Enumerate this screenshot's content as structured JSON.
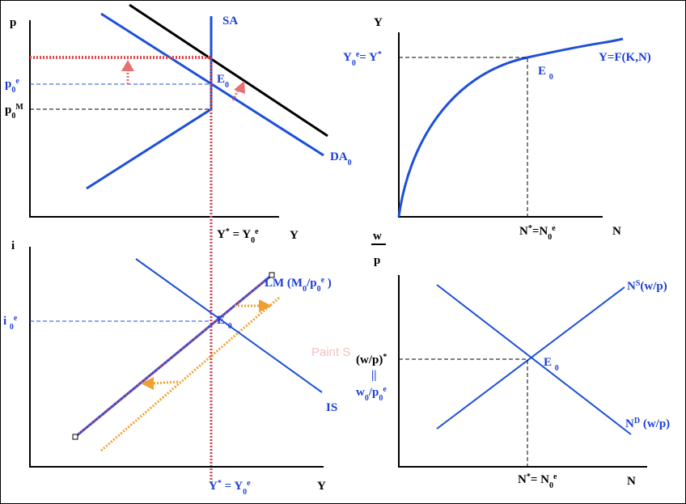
{
  "price_panel": {
    "y_axis": "p",
    "x_axis": "Y",
    "sa": "SA",
    "da": [
      {
        "t": "DA"
      },
      {
        "sub": "0"
      }
    ],
    "p0e": [
      {
        "t": "p"
      },
      {
        "sub": "0"
      },
      {
        "sup": "e"
      }
    ],
    "p0m": [
      {
        "t": "p"
      },
      {
        "sub": "0"
      },
      {
        "sup": "M"
      }
    ],
    "e0": [
      {
        "t": "E"
      },
      {
        "sub": "0"
      }
    ],
    "y_star": [
      {
        "t": "Y"
      },
      {
        "sup": "*"
      },
      {
        "t": " = Y"
      },
      {
        "sub": "0"
      },
      {
        "sup": "e"
      }
    ]
  },
  "production_panel": {
    "y_axis": "Y",
    "x_axis": "N",
    "function": "Y=F(K,N)",
    "y0": [
      {
        "t": "Y"
      },
      {
        "sub": "0"
      },
      {
        "sup": "e"
      },
      {
        "t": "= Y"
      },
      {
        "sup": "*"
      }
    ],
    "e0": [
      {
        "t": "E "
      },
      {
        "sub": "0"
      }
    ],
    "n_star": [
      {
        "t": "N"
      },
      {
        "sup": "*"
      },
      {
        "t": "=N"
      },
      {
        "sub": "0"
      },
      {
        "sup": "e"
      }
    ]
  },
  "islm_panel": {
    "y_axis": "i",
    "x_axis": "Y",
    "is": "IS",
    "lm": [
      {
        "t": "LM (M"
      },
      {
        "sub": "0"
      },
      {
        "t": "/p"
      },
      {
        "sub": "0"
      },
      {
        "sup": "e"
      },
      {
        "t": " )"
      }
    ],
    "i0e": [
      {
        "t": "i "
      },
      {
        "sub": "0"
      },
      {
        "sup": "e"
      }
    ],
    "e0": [
      {
        "t": "E "
      },
      {
        "sub": "0"
      }
    ],
    "y_star": [
      {
        "t": "Y"
      },
      {
        "sup": "*"
      },
      {
        "t": " = Y"
      },
      {
        "sub": "0"
      },
      {
        "sup": "e"
      }
    ],
    "watermark": "Paint S"
  },
  "labor_panel": {
    "y_axis_top": "w",
    "y_axis_bottom": "p",
    "x_axis": "N",
    "ns": [
      {
        "t": "N"
      },
      {
        "sup": "S"
      },
      {
        "t": "(w/p)"
      }
    ],
    "nd": [
      {
        "t": "N"
      },
      {
        "sup": "D"
      },
      {
        "t": " (w/p)"
      }
    ],
    "wp_star": [
      {
        "t": "(w/p)"
      },
      {
        "sup": "*"
      }
    ],
    "equals": "||",
    "w0": [
      {
        "t": "w"
      },
      {
        "sub": "0"
      },
      {
        "t": "/p"
      },
      {
        "sub": "0"
      },
      {
        "sup": "e"
      }
    ],
    "e0": [
      {
        "t": "E "
      },
      {
        "sub": "0"
      }
    ],
    "n_star": [
      {
        "t": "N"
      },
      {
        "sup": "*"
      },
      {
        "t": "= N"
      },
      {
        "sub": "0"
      },
      {
        "sup": "e"
      }
    ]
  }
}
